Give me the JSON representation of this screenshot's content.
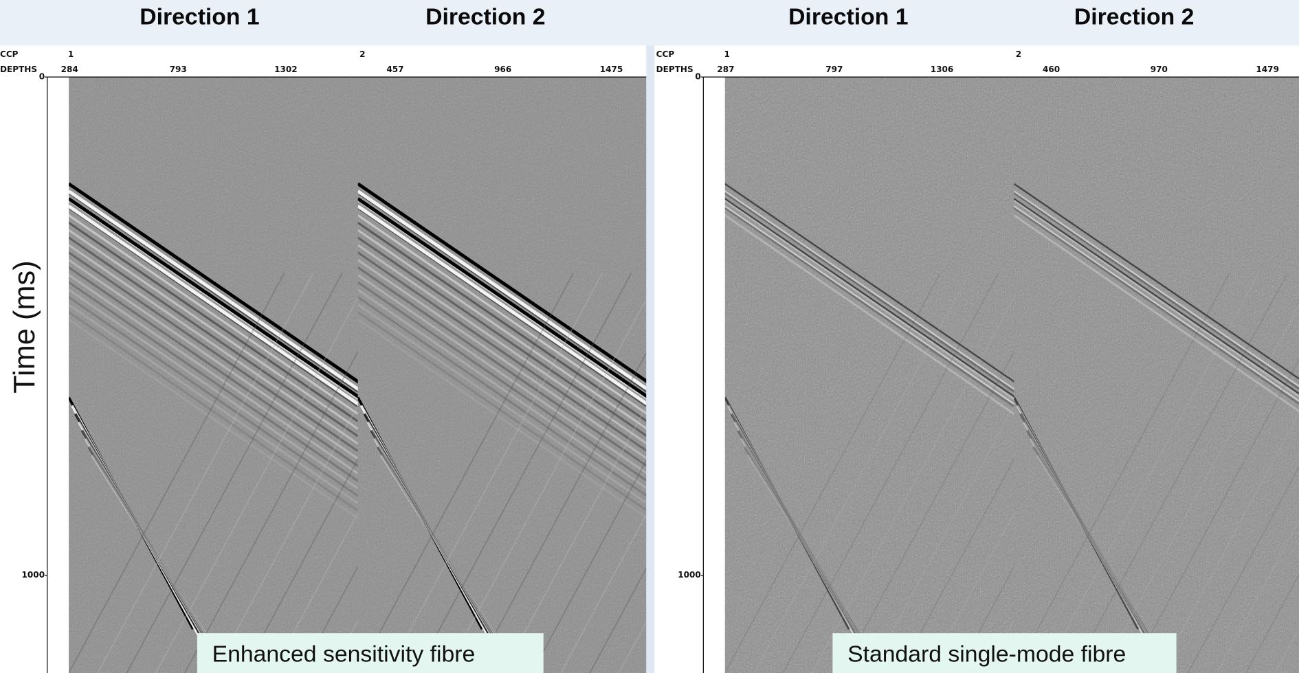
{
  "panels": [
    {
      "headers": [
        "Direction 1",
        "Direction 2"
      ],
      "ccp_label": "CCP",
      "depth_label": "DEPTHS",
      "ccp": [
        "1",
        "2"
      ],
      "depths": [
        "284",
        "793",
        "1302",
        "457",
        "966",
        "1475"
      ],
      "time_ticks": [
        "0",
        "1000"
      ],
      "caption": "Enhanced sensitivity fibre"
    },
    {
      "headers": [
        "Direction 1",
        "Direction 2"
      ],
      "ccp_label": "CCP",
      "depth_label": "DEPTHS",
      "ccp": [
        "1",
        "2"
      ],
      "depths": [
        "287",
        "797",
        "1306",
        "460",
        "970",
        "1479"
      ],
      "time_ticks": [
        "0",
        "1000"
      ],
      "caption": "Standard single-mode fibre"
    }
  ],
  "y_label": "Time (ms)"
}
